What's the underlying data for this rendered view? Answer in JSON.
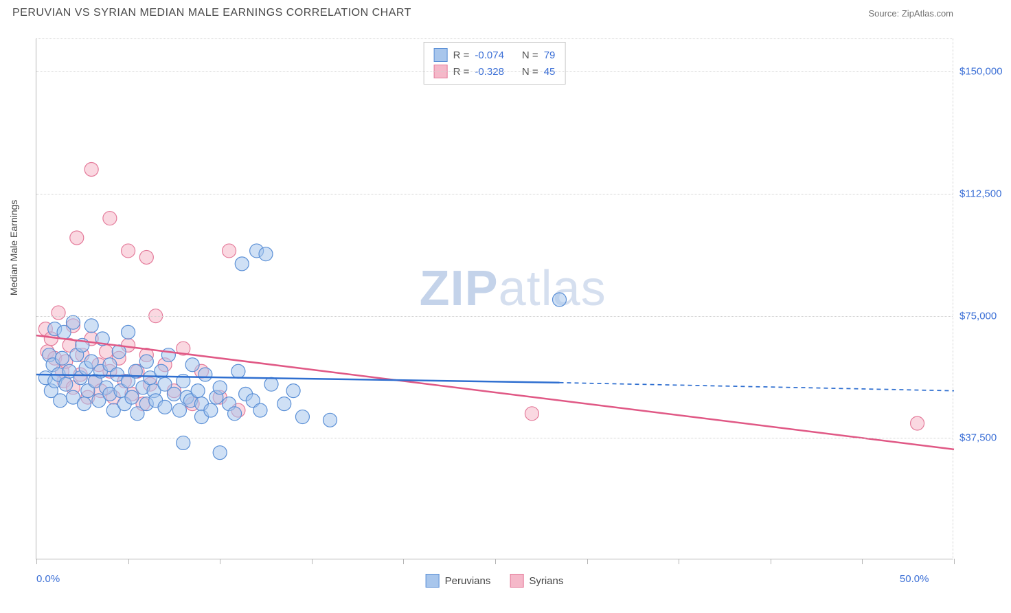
{
  "header": {
    "title": "PERUVIAN VS SYRIAN MEDIAN MALE EARNINGS CORRELATION CHART",
    "source": "Source: ZipAtlas.com"
  },
  "chart": {
    "type": "scatter",
    "y_axis_label": "Median Male Earnings",
    "watermark_a": "ZIP",
    "watermark_b": "atlas",
    "background_color": "#ffffff",
    "grid_color": "#d0d0d0",
    "axis_color": "#b5b5b5",
    "tick_label_color": "#3b6fd6",
    "xlim": [
      0,
      50
    ],
    "ylim": [
      0,
      160000
    ],
    "y_ticks": [
      {
        "value": 37500,
        "label": "$37,500"
      },
      {
        "value": 75000,
        "label": "$75,000"
      },
      {
        "value": 112500,
        "label": "$112,500"
      },
      {
        "value": 150000,
        "label": "$150,000"
      }
    ],
    "x_ticks": [
      0,
      5,
      10,
      15,
      20,
      25,
      30,
      35,
      40,
      45,
      50
    ],
    "x_tick_labels": {
      "left": "0.0%",
      "right": "50.0%"
    },
    "series": {
      "peruvians": {
        "label": "Peruvians",
        "fill_color": "#a8c6ec",
        "stroke_color": "#5a8fd6",
        "fill_opacity": 0.55,
        "marker_radius": 10,
        "r_value": "-0.074",
        "n_value": "79",
        "trend": {
          "x1": 0,
          "y1": 57000,
          "x2": 28.5,
          "y2": 54500,
          "x_dash_end": 50,
          "y_dash_end": 52000,
          "color": "#2f6fd0",
          "width": 2.5
        },
        "points": [
          [
            0.5,
            56000
          ],
          [
            0.7,
            63000
          ],
          [
            0.8,
            52000
          ],
          [
            0.9,
            60000
          ],
          [
            1.0,
            55000
          ],
          [
            1.0,
            71000
          ],
          [
            1.2,
            57000
          ],
          [
            1.3,
            49000
          ],
          [
            1.4,
            62000
          ],
          [
            1.5,
            70000
          ],
          [
            1.6,
            54000
          ],
          [
            1.8,
            58000
          ],
          [
            2.0,
            73000
          ],
          [
            2.0,
            50000
          ],
          [
            2.2,
            63000
          ],
          [
            2.4,
            56000
          ],
          [
            2.5,
            66000
          ],
          [
            2.6,
            48000
          ],
          [
            2.7,
            59000
          ],
          [
            2.8,
            52000
          ],
          [
            3.0,
            61000
          ],
          [
            3.0,
            72000
          ],
          [
            3.2,
            55000
          ],
          [
            3.4,
            49000
          ],
          [
            3.5,
            58000
          ],
          [
            3.6,
            68000
          ],
          [
            3.8,
            53000
          ],
          [
            4.0,
            51000
          ],
          [
            4.0,
            60000
          ],
          [
            4.2,
            46000
          ],
          [
            4.4,
            57000
          ],
          [
            4.5,
            64000
          ],
          [
            4.6,
            52000
          ],
          [
            4.8,
            48000
          ],
          [
            5.0,
            70000
          ],
          [
            5.0,
            55000
          ],
          [
            5.2,
            50000
          ],
          [
            5.4,
            58000
          ],
          [
            5.5,
            45000
          ],
          [
            5.8,
            53000
          ],
          [
            6.0,
            61000
          ],
          [
            6.0,
            48000
          ],
          [
            6.2,
            56000
          ],
          [
            6.4,
            52000
          ],
          [
            6.5,
            49000
          ],
          [
            6.8,
            58000
          ],
          [
            7.0,
            54000
          ],
          [
            7.0,
            47000
          ],
          [
            7.2,
            63000
          ],
          [
            7.5,
            51000
          ],
          [
            7.8,
            46000
          ],
          [
            8.0,
            55000
          ],
          [
            8.0,
            36000
          ],
          [
            8.2,
            50000
          ],
          [
            8.4,
            49000
          ],
          [
            8.5,
            60000
          ],
          [
            8.8,
            52000
          ],
          [
            9.0,
            48000
          ],
          [
            9.0,
            44000
          ],
          [
            9.2,
            57000
          ],
          [
            9.5,
            46000
          ],
          [
            9.8,
            50000
          ],
          [
            10.0,
            53000
          ],
          [
            10.0,
            33000
          ],
          [
            10.5,
            48000
          ],
          [
            10.8,
            45000
          ],
          [
            11.0,
            58000
          ],
          [
            11.2,
            91000
          ],
          [
            11.4,
            51000
          ],
          [
            11.8,
            49000
          ],
          [
            12.0,
            95000
          ],
          [
            12.2,
            46000
          ],
          [
            12.5,
            94000
          ],
          [
            12.8,
            54000
          ],
          [
            13.5,
            48000
          ],
          [
            14.0,
            52000
          ],
          [
            14.5,
            44000
          ],
          [
            16.0,
            43000
          ],
          [
            28.5,
            80000
          ]
        ]
      },
      "syrians": {
        "label": "Syrians",
        "fill_color": "#f5b8c9",
        "stroke_color": "#e47a9a",
        "fill_opacity": 0.55,
        "marker_radius": 10,
        "r_value": "-0.328",
        "n_value": "45",
        "trend": {
          "x1": 0,
          "y1": 69000,
          "x2": 50,
          "y2": 34000,
          "color": "#e05885",
          "width": 2.5
        },
        "points": [
          [
            0.5,
            71000
          ],
          [
            0.6,
            64000
          ],
          [
            0.8,
            68000
          ],
          [
            1.0,
            62000
          ],
          [
            1.2,
            76000
          ],
          [
            1.4,
            58000
          ],
          [
            1.5,
            55000
          ],
          [
            1.6,
            61000
          ],
          [
            1.8,
            66000
          ],
          [
            2.0,
            72000
          ],
          [
            2.0,
            53000
          ],
          [
            2.2,
            99000
          ],
          [
            2.4,
            57000
          ],
          [
            2.5,
            63000
          ],
          [
            2.8,
            50000
          ],
          [
            3.0,
            68000
          ],
          [
            3.0,
            120000
          ],
          [
            3.2,
            55000
          ],
          [
            3.4,
            60000
          ],
          [
            3.5,
            52000
          ],
          [
            3.8,
            64000
          ],
          [
            4.0,
            58000
          ],
          [
            4.0,
            105000
          ],
          [
            4.2,
            50000
          ],
          [
            4.5,
            62000
          ],
          [
            4.8,
            55000
          ],
          [
            5.0,
            66000
          ],
          [
            5.0,
            95000
          ],
          [
            5.2,
            51000
          ],
          [
            5.5,
            58000
          ],
          [
            5.8,
            48000
          ],
          [
            6.0,
            63000
          ],
          [
            6.0,
            93000
          ],
          [
            6.2,
            54000
          ],
          [
            6.5,
            75000
          ],
          [
            7.0,
            60000
          ],
          [
            7.5,
            52000
          ],
          [
            8.0,
            65000
          ],
          [
            8.5,
            48000
          ],
          [
            9.0,
            58000
          ],
          [
            10.0,
            50000
          ],
          [
            10.5,
            95000
          ],
          [
            11.0,
            46000
          ],
          [
            27.0,
            45000
          ],
          [
            48.0,
            42000
          ]
        ]
      }
    },
    "legend_top": {
      "r_label": "R =",
      "n_label": "N ="
    }
  }
}
